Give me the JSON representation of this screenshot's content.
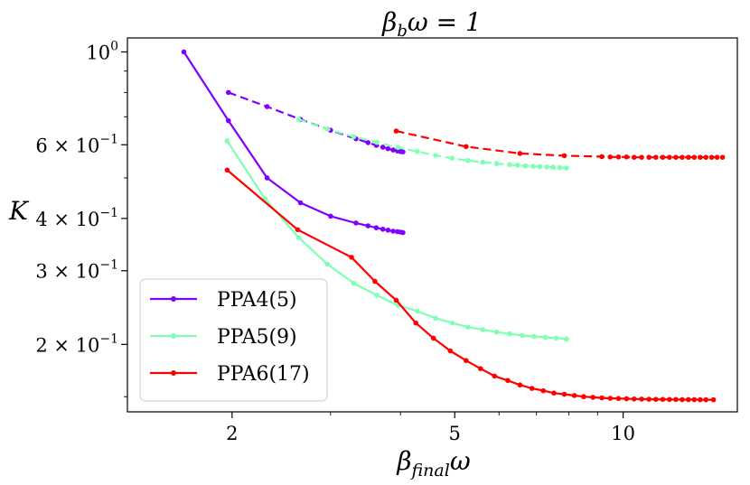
{
  "chart_data": {
    "type": "line",
    "title": "βbω = 1",
    "title_main": "β",
    "title_sub": "b",
    "title_rest": "ω = 1",
    "xlabel": "βfinalω",
    "xlabel_main": "β",
    "xlabel_sub": "final",
    "xlabel_rest": "ω",
    "ylabel": "K",
    "x_scale": "log",
    "y_scale": "log",
    "xlim": [
      1.3,
      16.0
    ],
    "ylim": [
      0.138,
      1.08
    ],
    "x_ticks": [
      {
        "value": 2,
        "label": "2"
      },
      {
        "value": 5,
        "label": "5"
      },
      {
        "value": 10,
        "label": "10"
      }
    ],
    "y_ticks": [
      {
        "value": 1.0,
        "base": "10",
        "exp": "0",
        "coef": ""
      },
      {
        "value": 0.6,
        "base": "10",
        "exp": "−1",
        "coef": "6 × "
      },
      {
        "value": 0.4,
        "base": "10",
        "exp": "−1",
        "coef": "4 × "
      },
      {
        "value": 0.3,
        "base": "10",
        "exp": "−1",
        "coef": "3 × "
      },
      {
        "value": 0.2,
        "base": "10",
        "exp": "−1",
        "coef": "2 × "
      }
    ],
    "grid": false,
    "legend_position": "bottom-left",
    "series": [
      {
        "name": "PPA4(5)",
        "color": "#8000ff",
        "solid": {
          "x": [
            1.64,
            1.97,
            2.31,
            2.65,
            3.0,
            3.33,
            3.5,
            3.62,
            3.72,
            3.8,
            3.88,
            3.95,
            4.0,
            4.04
          ],
          "y": [
            1.0,
            0.685,
            0.5,
            0.436,
            0.405,
            0.39,
            0.384,
            0.38,
            0.377,
            0.375,
            0.373,
            0.372,
            0.371,
            0.37
          ]
        },
        "dashed": {
          "x": [
            1.97,
            2.31,
            2.65,
            3.0,
            3.33,
            3.5,
            3.62,
            3.72,
            3.8,
            3.88,
            3.95,
            4.0,
            4.04
          ],
          "y": [
            0.8,
            0.74,
            0.69,
            0.65,
            0.62,
            0.607,
            0.598,
            0.592,
            0.587,
            0.583,
            0.58,
            0.578,
            0.577
          ]
        }
      },
      {
        "name": "PPA5(9)",
        "color": "#80ffb4",
        "solid": {
          "x": [
            1.96,
            2.29,
            2.63,
            2.96,
            3.3,
            3.63,
            3.96,
            4.29,
            4.62,
            4.95,
            5.28,
            5.61,
            5.94,
            6.27,
            6.6,
            6.93,
            7.26,
            7.59,
            7.92
          ],
          "y": [
            0.613,
            0.446,
            0.36,
            0.311,
            0.28,
            0.262,
            0.248,
            0.24,
            0.231,
            0.225,
            0.22,
            0.217,
            0.214,
            0.212,
            0.21,
            0.209,
            0.208,
            0.207,
            0.206
          ]
        },
        "dashed": {
          "x": [
            2.63,
            2.96,
            3.3,
            3.63,
            3.96,
            4.29,
            4.62,
            4.95,
            5.28,
            5.61,
            5.94,
            6.27,
            6.48,
            6.69,
            6.9,
            7.1,
            7.3,
            7.5,
            7.7,
            7.92
          ],
          "y": [
            0.69,
            0.654,
            0.627,
            0.608,
            0.591,
            0.578,
            0.566,
            0.557,
            0.55,
            0.545,
            0.541,
            0.538,
            0.536,
            0.534,
            0.533,
            0.532,
            0.531,
            0.53,
            0.529,
            0.528
          ]
        }
      },
      {
        "name": "PPA6(17)",
        "color": "#ff0000",
        "solid": {
          "x": [
            1.96,
            2.62,
            3.27,
            3.6,
            3.93,
            4.26,
            4.58,
            4.91,
            5.24,
            5.56,
            5.89,
            6.22,
            6.54,
            6.87,
            7.2,
            7.52,
            7.85,
            8.18,
            8.5,
            8.83,
            9.16,
            9.48,
            9.81,
            10.14,
            10.46,
            10.79,
            11.12,
            11.44,
            11.77,
            12.1,
            12.42,
            12.75,
            13.08,
            13.4,
            13.73,
            14.06,
            14.5
          ],
          "y": [
            0.522,
            0.376,
            0.323,
            0.283,
            0.255,
            0.225,
            0.207,
            0.193,
            0.183,
            0.175,
            0.168,
            0.164,
            0.16,
            0.157,
            0.155,
            0.153,
            0.152,
            0.151,
            0.15,
            0.1495,
            0.149,
            0.1487,
            0.1485,
            0.1483,
            0.1481,
            0.148,
            0.1479,
            0.1478,
            0.1478,
            0.1477,
            0.1477,
            0.1476,
            0.1476,
            0.1476,
            0.1475,
            0.1475,
            0.1475
          ]
        },
        "dashed": {
          "x": [
            3.93,
            5.24,
            6.54,
            7.85,
            9.16,
            9.48,
            9.81,
            10.14,
            10.46,
            10.79,
            11.12,
            11.44,
            11.77,
            12.1,
            12.42,
            12.75,
            13.08,
            13.4,
            13.73,
            14.06,
            14.39,
            14.72,
            15.05
          ],
          "y": [
            0.647,
            0.594,
            0.572,
            0.565,
            0.562,
            0.561,
            0.561,
            0.561,
            0.56,
            0.56,
            0.56,
            0.56,
            0.56,
            0.56,
            0.56,
            0.56,
            0.56,
            0.56,
            0.56,
            0.56,
            0.56,
            0.56,
            0.56
          ]
        }
      }
    ]
  }
}
